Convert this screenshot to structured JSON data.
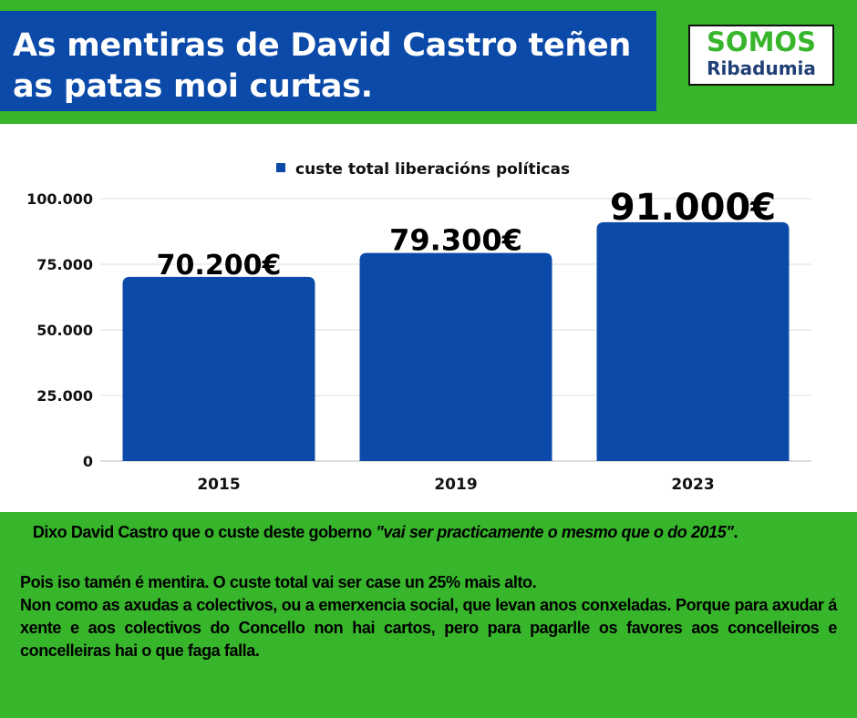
{
  "header": {
    "title": "As mentiras de David Castro teñen as patas moi curtas.",
    "logo_line1": "SOMOS",
    "logo_line2": "Ribadumia"
  },
  "colors": {
    "bar": "#0b4aa8",
    "background": "#37b52b",
    "title_bg": "#0b4aa8"
  },
  "chart_data": {
    "type": "bar",
    "title": "",
    "legend": [
      "custe total liberacións políticas"
    ],
    "legend_position": "top",
    "categories": [
      "2015",
      "2019",
      "2023"
    ],
    "values": [
      70200,
      79300,
      91000
    ],
    "data_labels": [
      "70.200€",
      "79.300€",
      "91.000€"
    ],
    "ylim": [
      0,
      100000
    ],
    "yticks": [
      0,
      25000,
      50000,
      75000,
      100000
    ],
    "ytick_labels": [
      "0",
      "25.000",
      "50.000",
      "75.000",
      "100.000"
    ],
    "xlabel": "",
    "ylabel": "",
    "grid": true
  },
  "body": {
    "p1_plain": "Dixo David Castro que o custe deste goberno ",
    "p1_quote": "\"vai ser practicamente o mesmo que o do 2015\"",
    "p1_end": ".",
    "p2": "Pois  iso tamén é mentira. O custe total vai ser case un 25% mais alto.",
    "p3": "Non como as axudas a colectivos, ou a emerxencia social, que levan anos conxeladas. Porque para axudar á xente e aos colectivos do Concello non hai cartos, pero para pagarlle os favores aos concelleiros e concelleiras hai o que faga falla."
  }
}
